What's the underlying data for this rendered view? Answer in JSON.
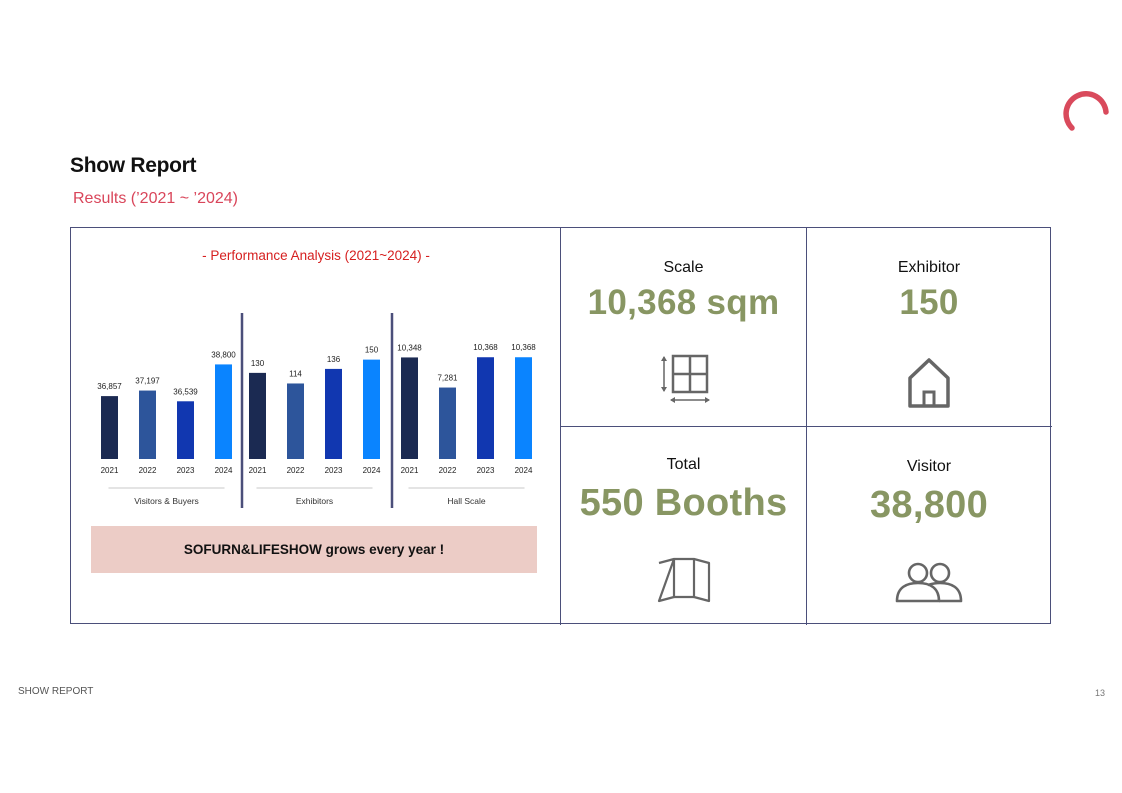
{
  "header": {
    "title": "Show Report",
    "subtitle": "Results (’2021 ~ ’2024)"
  },
  "chart_heading": "- Performance Analysis (2021~2024) -",
  "chart_data": {
    "type": "bar",
    "title": "- Performance Analysis (2021~2024) -",
    "groups": [
      {
        "name": "Visitors & Buyers",
        "categories": [
          "2021",
          "2022",
          "2023",
          "2024"
        ],
        "values": [
          36857,
          37197,
          36539,
          38800
        ],
        "labels": [
          "36,857",
          "37,197",
          "36,539",
          "38,800"
        ],
        "ylim": [
          33000,
          39500
        ]
      },
      {
        "name": "Exhibitors",
        "categories": [
          "2021",
          "2022",
          "2023",
          "2024"
        ],
        "values": [
          130,
          114,
          136,
          150
        ],
        "labels": [
          "130",
          "114",
          "136",
          "150"
        ],
        "ylim": [
          0,
          160
        ]
      },
      {
        "name": "Hall Scale",
        "categories": [
          "2021",
          "2022",
          "2023",
          "2024"
        ],
        "values": [
          10348,
          7281,
          10368,
          10368
        ],
        "labels": [
          "10,348",
          "7,281",
          "10,368",
          "10,368"
        ],
        "ylim": [
          0,
          10800
        ]
      }
    ],
    "colors": [
      "#1b2a52",
      "#2d559b",
      "#1137b0",
      "#0a84ff"
    ],
    "grid": false,
    "legend": "none"
  },
  "banner": "SOFURN&LIFESHOW grows every year !",
  "stats": {
    "scale": {
      "label": "Scale",
      "value": "10,368 sqm",
      "icon": "floor-plan-icon"
    },
    "exhibitor": {
      "label": "Exhibitor",
      "value": "150",
      "icon": "house-icon"
    },
    "total": {
      "label": "Total",
      "value": "550 Booths",
      "icon": "booth-icon"
    },
    "visitor": {
      "label": "Visitor",
      "value": "38,800",
      "icon": "people-icon"
    }
  },
  "footer": {
    "left": "SHOW REPORT",
    "page": "13"
  },
  "colors": {
    "accent": "#d9455a",
    "stat_value": "#889663",
    "border": "#4b4f7a",
    "banner_bg": "#ecccc6"
  }
}
